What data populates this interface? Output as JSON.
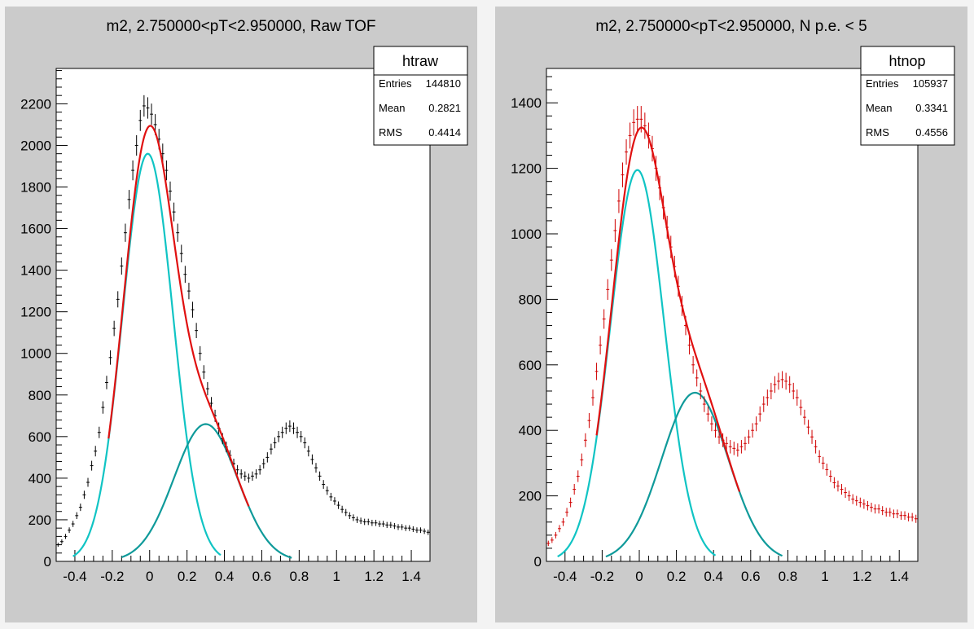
{
  "panels": [
    {
      "title": "m2, 2.750000<pT<2.950000, Raw TOF",
      "stats": {
        "name": "htraw",
        "rows": [
          [
            "Entries",
            "144810"
          ],
          [
            "Mean",
            "0.2821"
          ],
          [
            "RMS",
            "0.4414"
          ]
        ]
      }
    },
    {
      "title": "m2, 2.750000<pT<2.950000, N p.e. < 5",
      "stats": {
        "name": "htnop",
        "rows": [
          [
            "Entries",
            "105937"
          ],
          [
            "Mean",
            "0.3341"
          ],
          [
            "RMS",
            "0.4556"
          ]
        ]
      }
    }
  ],
  "colors": {
    "pad": "#cbcbcb",
    "frame": "#ffffff",
    "fit_total": "#e01010",
    "gauss1": "#10c4c4",
    "gauss2": "#0f9a9a"
  },
  "chart_data": [
    {
      "type": "scatter",
      "title": "m2, 2.750000<pT<2.950000, Raw TOF",
      "xlim": [
        -0.5,
        1.5
      ],
      "ylim": [
        0,
        2370
      ],
      "xticks": [
        -0.4,
        -0.2,
        0,
        0.2,
        0.4,
        0.6,
        0.8,
        1,
        1.2,
        1.4
      ],
      "xtick_labels": [
        "-0.4",
        "-0.2",
        "0",
        "0.2",
        "0.4",
        "0.6",
        "0.8",
        "1",
        "1.2",
        "1.4"
      ],
      "yticks": [
        0,
        200,
        400,
        600,
        800,
        1000,
        1200,
        1400,
        1600,
        1800,
        2000,
        2200
      ],
      "grid": false,
      "marker_color": "#000000",
      "histogram": {
        "x": [
          -0.49,
          -0.47,
          -0.45,
          -0.43,
          -0.41,
          -0.39,
          -0.37,
          -0.35,
          -0.33,
          -0.31,
          -0.29,
          -0.27,
          -0.25,
          -0.23,
          -0.21,
          -0.19,
          -0.17,
          -0.15,
          -0.13,
          -0.11,
          -0.09,
          -0.07,
          -0.05,
          -0.03,
          -0.01,
          0.01,
          0.03,
          0.05,
          0.07,
          0.09,
          0.11,
          0.13,
          0.15,
          0.17,
          0.19,
          0.21,
          0.23,
          0.25,
          0.27,
          0.29,
          0.31,
          0.33,
          0.35,
          0.37,
          0.39,
          0.41,
          0.43,
          0.45,
          0.47,
          0.49,
          0.51,
          0.53,
          0.55,
          0.57,
          0.59,
          0.61,
          0.63,
          0.65,
          0.67,
          0.69,
          0.71,
          0.73,
          0.75,
          0.77,
          0.79,
          0.81,
          0.83,
          0.85,
          0.87,
          0.89,
          0.91,
          0.93,
          0.95,
          0.97,
          0.99,
          1.01,
          1.03,
          1.05,
          1.07,
          1.09,
          1.11,
          1.13,
          1.15,
          1.17,
          1.19,
          1.21,
          1.23,
          1.25,
          1.27,
          1.29,
          1.31,
          1.33,
          1.35,
          1.37,
          1.39,
          1.41,
          1.43,
          1.45,
          1.47,
          1.49
        ],
        "y": [
          80,
          95,
          120,
          150,
          180,
          220,
          260,
          320,
          380,
          460,
          530,
          620,
          740,
          860,
          980,
          1120,
          1260,
          1420,
          1580,
          1740,
          1880,
          2000,
          2120,
          2190,
          2180,
          2150,
          2100,
          2030,
          1960,
          1880,
          1780,
          1680,
          1580,
          1480,
          1380,
          1300,
          1210,
          1110,
          1000,
          910,
          830,
          760,
          700,
          640,
          590,
          550,
          510,
          470,
          440,
          420,
          410,
          400,
          410,
          420,
          440,
          470,
          500,
          540,
          570,
          600,
          620,
          640,
          650,
          640,
          620,
          600,
          570,
          530,
          490,
          450,
          410,
          370,
          340,
          310,
          290,
          270,
          250,
          235,
          220,
          210,
          200,
          195,
          190,
          190,
          185,
          185,
          180,
          180,
          175,
          175,
          170,
          165,
          165,
          160,
          160,
          155,
          150,
          150,
          145,
          140
        ]
      },
      "fits": {
        "total": {
          "color": "#e01010",
          "xrange": [
            -0.22,
            0.53
          ]
        },
        "gauss1": {
          "color": "#10c4c4",
          "amp": 1960,
          "mean": -0.01,
          "sigma": 0.135,
          "xrange": [
            -0.41,
            0.38
          ]
        },
        "gauss2": {
          "color": "#0f9a9a",
          "amp": 660,
          "mean": 0.3,
          "sigma": 0.17,
          "xrange": [
            -0.15,
            0.76
          ]
        }
      }
    },
    {
      "type": "scatter",
      "title": "m2, 2.750000<pT<2.950000, N p.e. < 5",
      "xlim": [
        -0.5,
        1.5
      ],
      "ylim": [
        0,
        1505
      ],
      "xticks": [
        -0.4,
        -0.2,
        0,
        0.2,
        0.4,
        0.6,
        0.8,
        1,
        1.2,
        1.4
      ],
      "xtick_labels": [
        "-0.4",
        "-0.2",
        "0",
        "0.2",
        "0.4",
        "0.6",
        "0.8",
        "1",
        "1.2",
        "1.4"
      ],
      "yticks": [
        0,
        200,
        400,
        600,
        800,
        1000,
        1200,
        1400
      ],
      "grid": false,
      "marker_color": "#d00000",
      "histogram": {
        "x": [
          -0.49,
          -0.47,
          -0.45,
          -0.43,
          -0.41,
          -0.39,
          -0.37,
          -0.35,
          -0.33,
          -0.31,
          -0.29,
          -0.27,
          -0.25,
          -0.23,
          -0.21,
          -0.19,
          -0.17,
          -0.15,
          -0.13,
          -0.11,
          -0.09,
          -0.07,
          -0.05,
          -0.03,
          -0.01,
          0.01,
          0.03,
          0.05,
          0.07,
          0.09,
          0.11,
          0.13,
          0.15,
          0.17,
          0.19,
          0.21,
          0.23,
          0.25,
          0.27,
          0.29,
          0.31,
          0.33,
          0.35,
          0.37,
          0.39,
          0.41,
          0.43,
          0.45,
          0.47,
          0.49,
          0.51,
          0.53,
          0.55,
          0.57,
          0.59,
          0.61,
          0.63,
          0.65,
          0.67,
          0.69,
          0.71,
          0.73,
          0.75,
          0.77,
          0.79,
          0.81,
          0.83,
          0.85,
          0.87,
          0.89,
          0.91,
          0.93,
          0.95,
          0.97,
          0.99,
          1.01,
          1.03,
          1.05,
          1.07,
          1.09,
          1.11,
          1.13,
          1.15,
          1.17,
          1.19,
          1.21,
          1.23,
          1.25,
          1.27,
          1.29,
          1.31,
          1.33,
          1.35,
          1.37,
          1.39,
          1.41,
          1.43,
          1.45,
          1.47,
          1.49
        ],
        "y": [
          55,
          65,
          80,
          100,
          120,
          150,
          180,
          220,
          260,
          310,
          370,
          430,
          500,
          580,
          660,
          740,
          830,
          920,
          1010,
          1100,
          1180,
          1250,
          1300,
          1340,
          1350,
          1350,
          1330,
          1300,
          1260,
          1200,
          1140,
          1080,
          1020,
          960,
          900,
          840,
          780,
          720,
          660,
          600,
          560,
          520,
          480,
          450,
          420,
          400,
          380,
          370,
          360,
          350,
          345,
          340,
          350,
          360,
          380,
          400,
          420,
          450,
          480,
          500,
          520,
          540,
          550,
          555,
          550,
          540,
          520,
          500,
          470,
          440,
          410,
          380,
          350,
          320,
          300,
          280,
          260,
          240,
          230,
          220,
          210,
          200,
          190,
          185,
          180,
          175,
          170,
          165,
          160,
          160,
          155,
          150,
          150,
          145,
          145,
          140,
          140,
          135,
          135,
          130
        ]
      },
      "fits": {
        "total": {
          "color": "#e01010",
          "xrange": [
            -0.23,
            0.54
          ]
        },
        "gauss1": {
          "color": "#10c4c4",
          "amp": 1195,
          "mean": -0.01,
          "sigma": 0.145,
          "xrange": [
            -0.44,
            0.41
          ]
        },
        "gauss2": {
          "color": "#0f9a9a",
          "amp": 515,
          "mean": 0.3,
          "sigma": 0.18,
          "xrange": [
            -0.18,
            0.77
          ]
        }
      }
    }
  ]
}
